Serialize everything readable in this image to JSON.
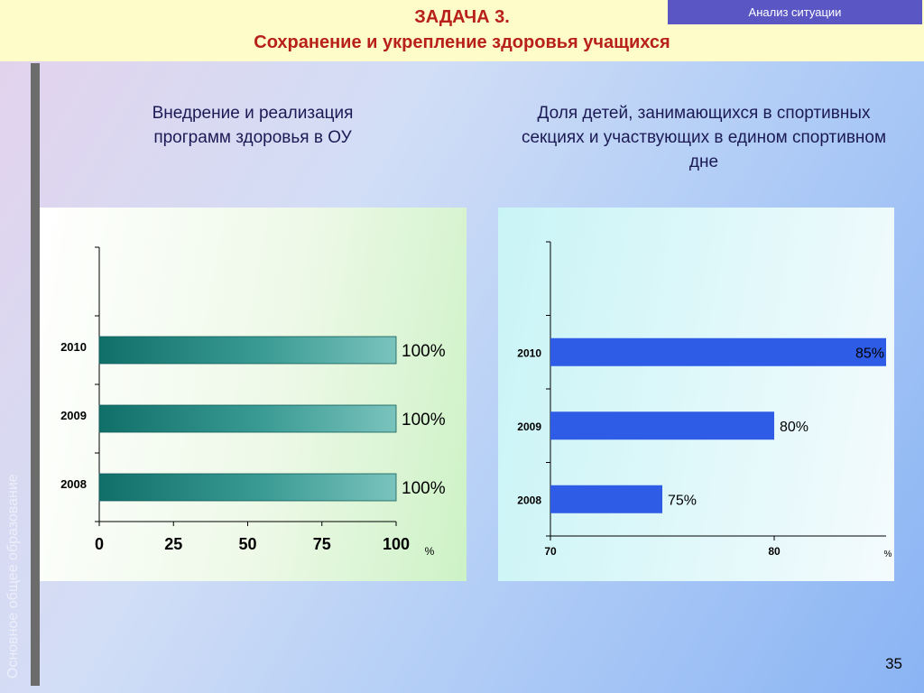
{
  "header": {
    "task_line": "ЗАДАЧА 3.",
    "title": "Сохранение и укрепление здоровья учащихся",
    "badge": "Анализ ситуации"
  },
  "sidebar": {
    "vertical_text": "Основное общее образование"
  },
  "page_number": "35",
  "colors": {
    "left_bar_fill": "#1a8680",
    "right_bar_fill": "#2f5ce6",
    "title_red": "#b8201a",
    "badge_bg": "#5a57c4"
  },
  "chart_data": [
    {
      "type": "bar",
      "orientation": "horizontal",
      "title": "Внедрение и реализация программ здоровья в ОУ",
      "categories": [
        "2010",
        "2009",
        "2008"
      ],
      "values": [
        100,
        100,
        100
      ],
      "data_labels": [
        "100%",
        "100%",
        "100%"
      ],
      "xlim": [
        0,
        100
      ],
      "x_ticks": [
        "0",
        "25",
        "50",
        "75",
        "100"
      ],
      "unit_label": "%",
      "grid": false
    },
    {
      "type": "bar",
      "orientation": "horizontal",
      "title": "Доля детей, занимающихся в спортивных секциях и участвующих в едином спортивном дне",
      "categories": [
        "2010",
        "2009",
        "2008"
      ],
      "values": [
        85,
        80,
        75
      ],
      "data_labels": [
        "85%",
        "80%",
        "75%"
      ],
      "xlim": [
        70,
        85
      ],
      "x_ticks": [
        "70",
        "80"
      ],
      "unit_label": "%",
      "grid": false
    }
  ]
}
